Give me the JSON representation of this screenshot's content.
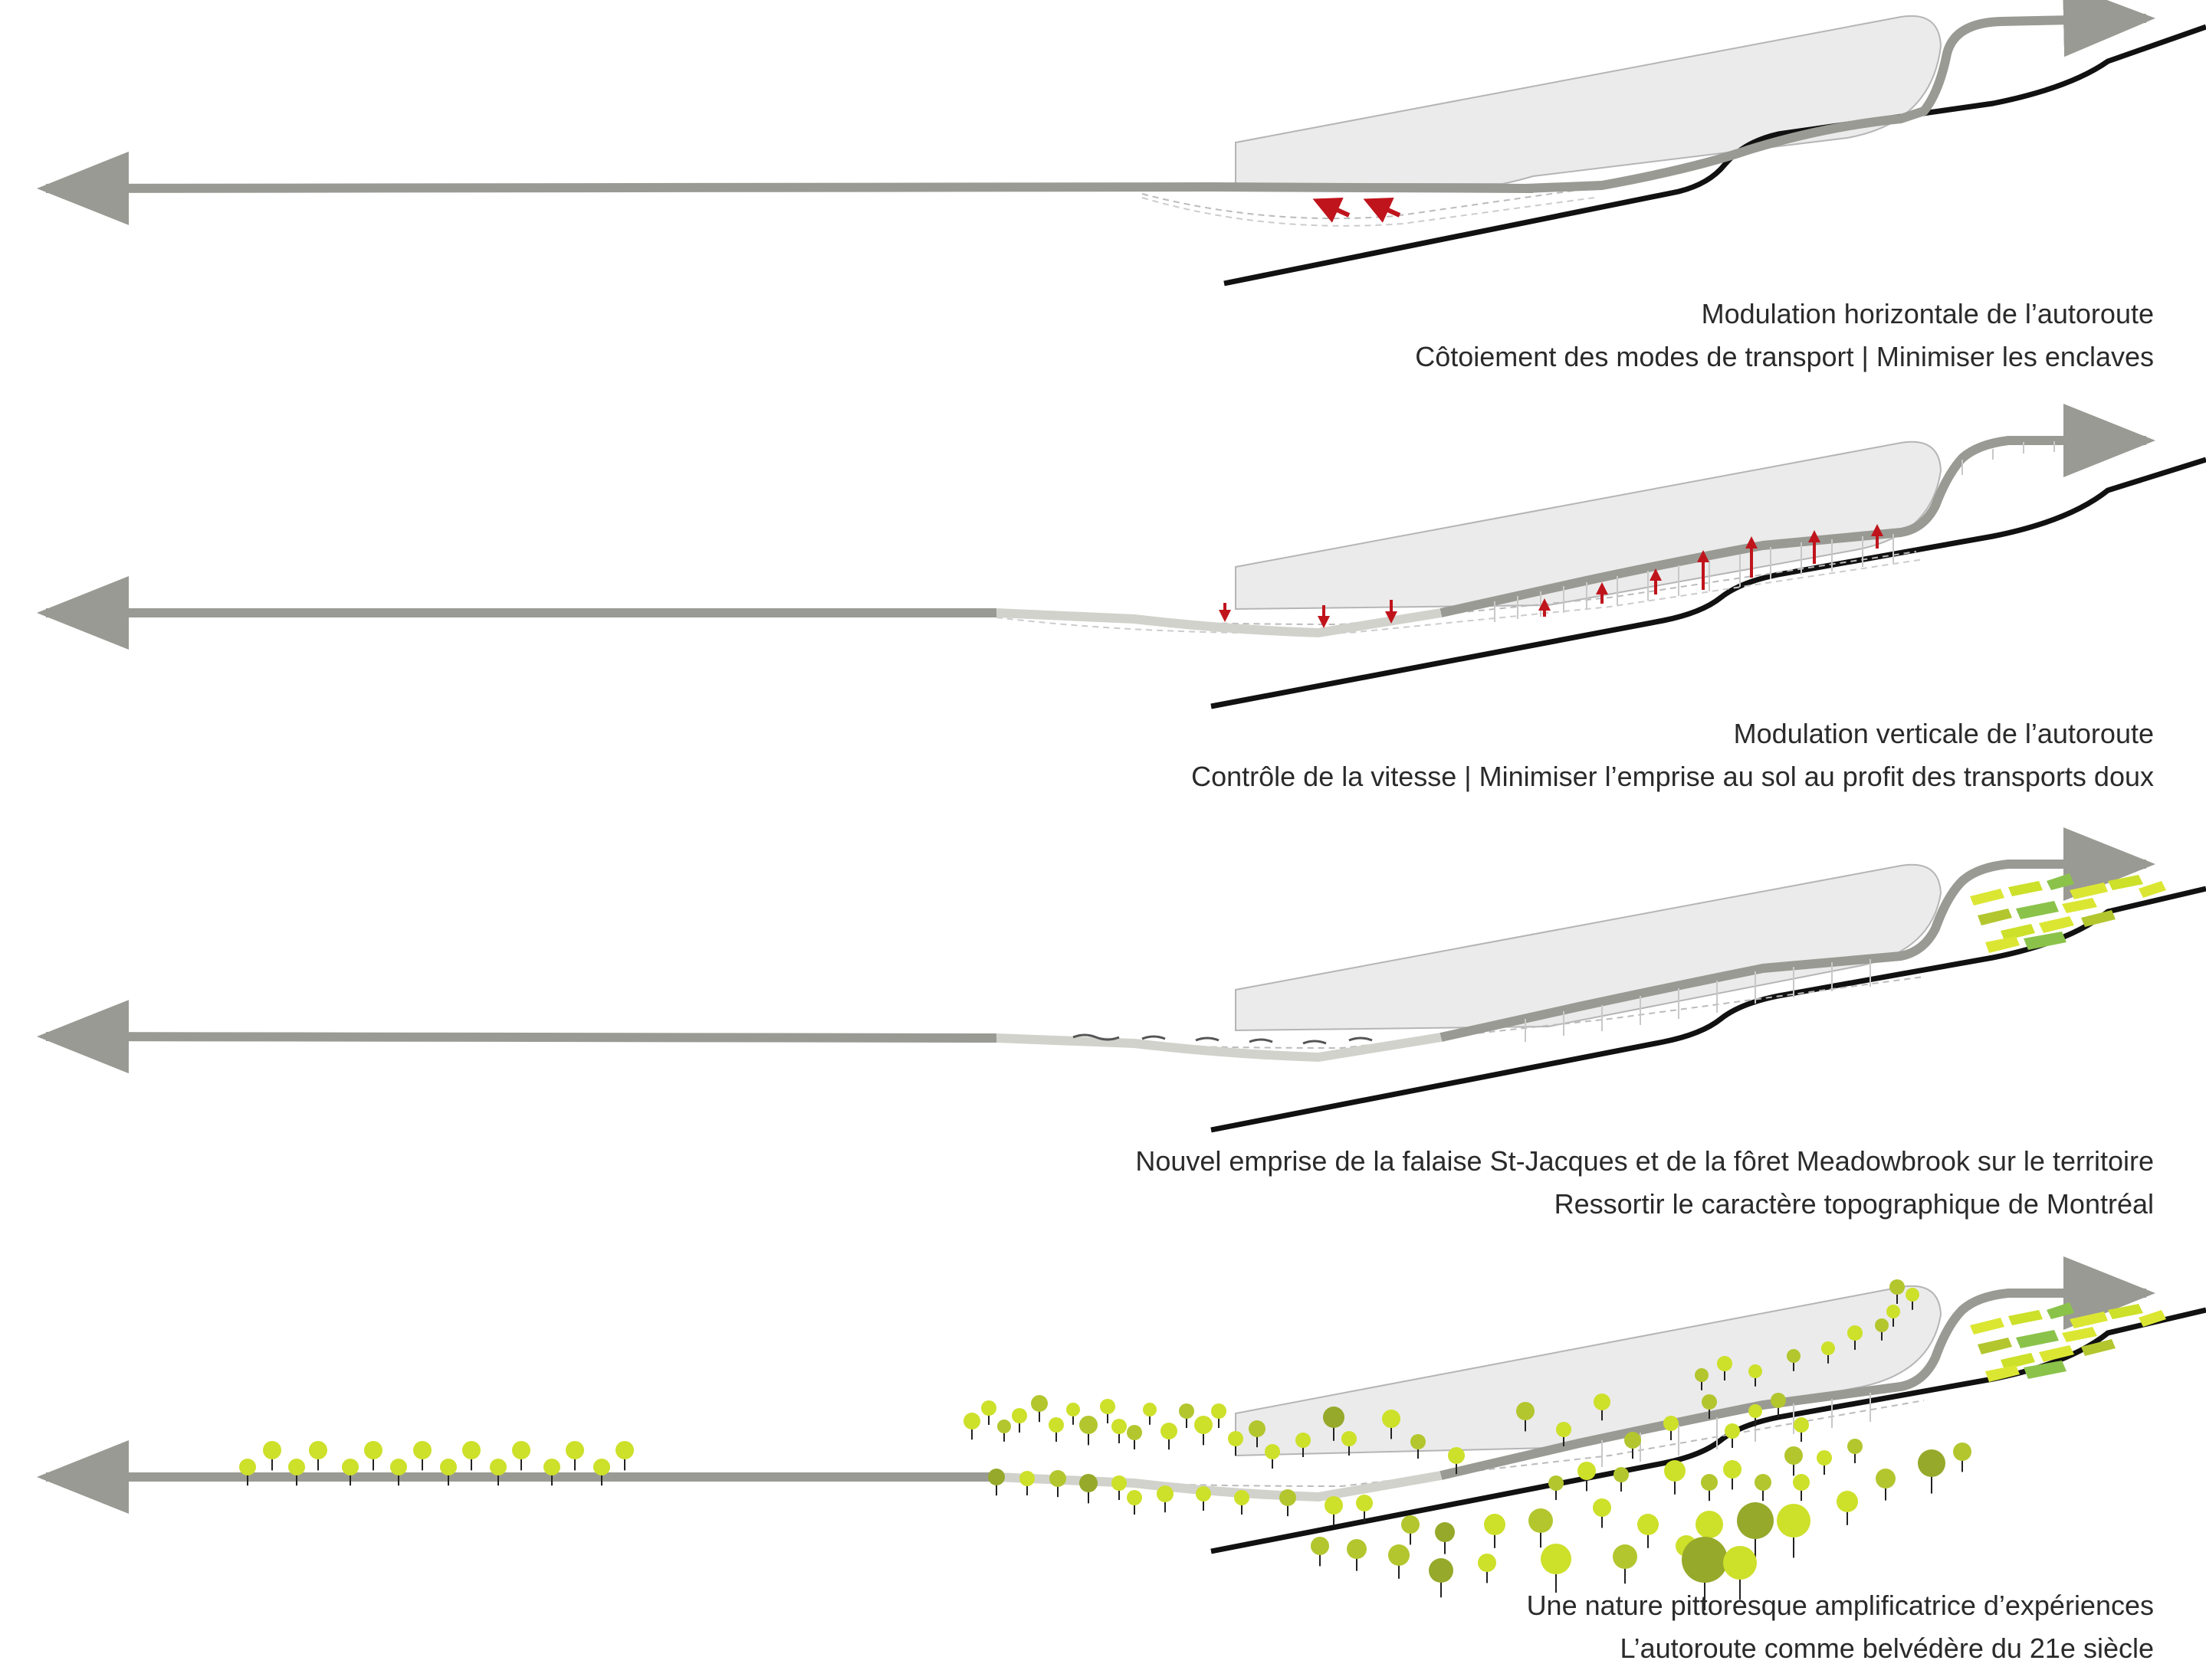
{
  "panels": [
    {
      "id": "horizontal",
      "caption_line1": "Modulation horizontale de l’autoroute",
      "caption_line2": "Côtoiement des modes de transport | Minimiser les enclaves"
    },
    {
      "id": "vertical",
      "caption_line1": "Modulation verticale de l’autoroute",
      "caption_line2": "Contrôle de la vitesse |  Minimiser l’emprise au sol au profit des transports doux"
    },
    {
      "id": "topography",
      "caption_line1": "Nouvel emprise de la falaise St-Jacques et de la fôret Meadowbrook sur le territoire",
      "caption_line2": "Ressortir le caractère topographique de Montréal"
    },
    {
      "id": "nature",
      "caption_line1": "Une nature pittoresque amplificatrice d’expériences",
      "caption_line2": "L’autoroute comme belvédère du 21e siècle"
    }
  ],
  "colors": {
    "highway": "#9a9a94",
    "highway_light": "#cfcfc8",
    "rail": "#111111",
    "cliff_fill": "#ebebeb",
    "cliff_stroke": "#b5b5b5",
    "arrow_red": "#c0141c",
    "tree_light": "#cde02a",
    "tree_mid": "#b3c62e",
    "tree_dark": "#96a92a",
    "field_yellow": "#dbe633",
    "field_green": "#8bc34a"
  }
}
